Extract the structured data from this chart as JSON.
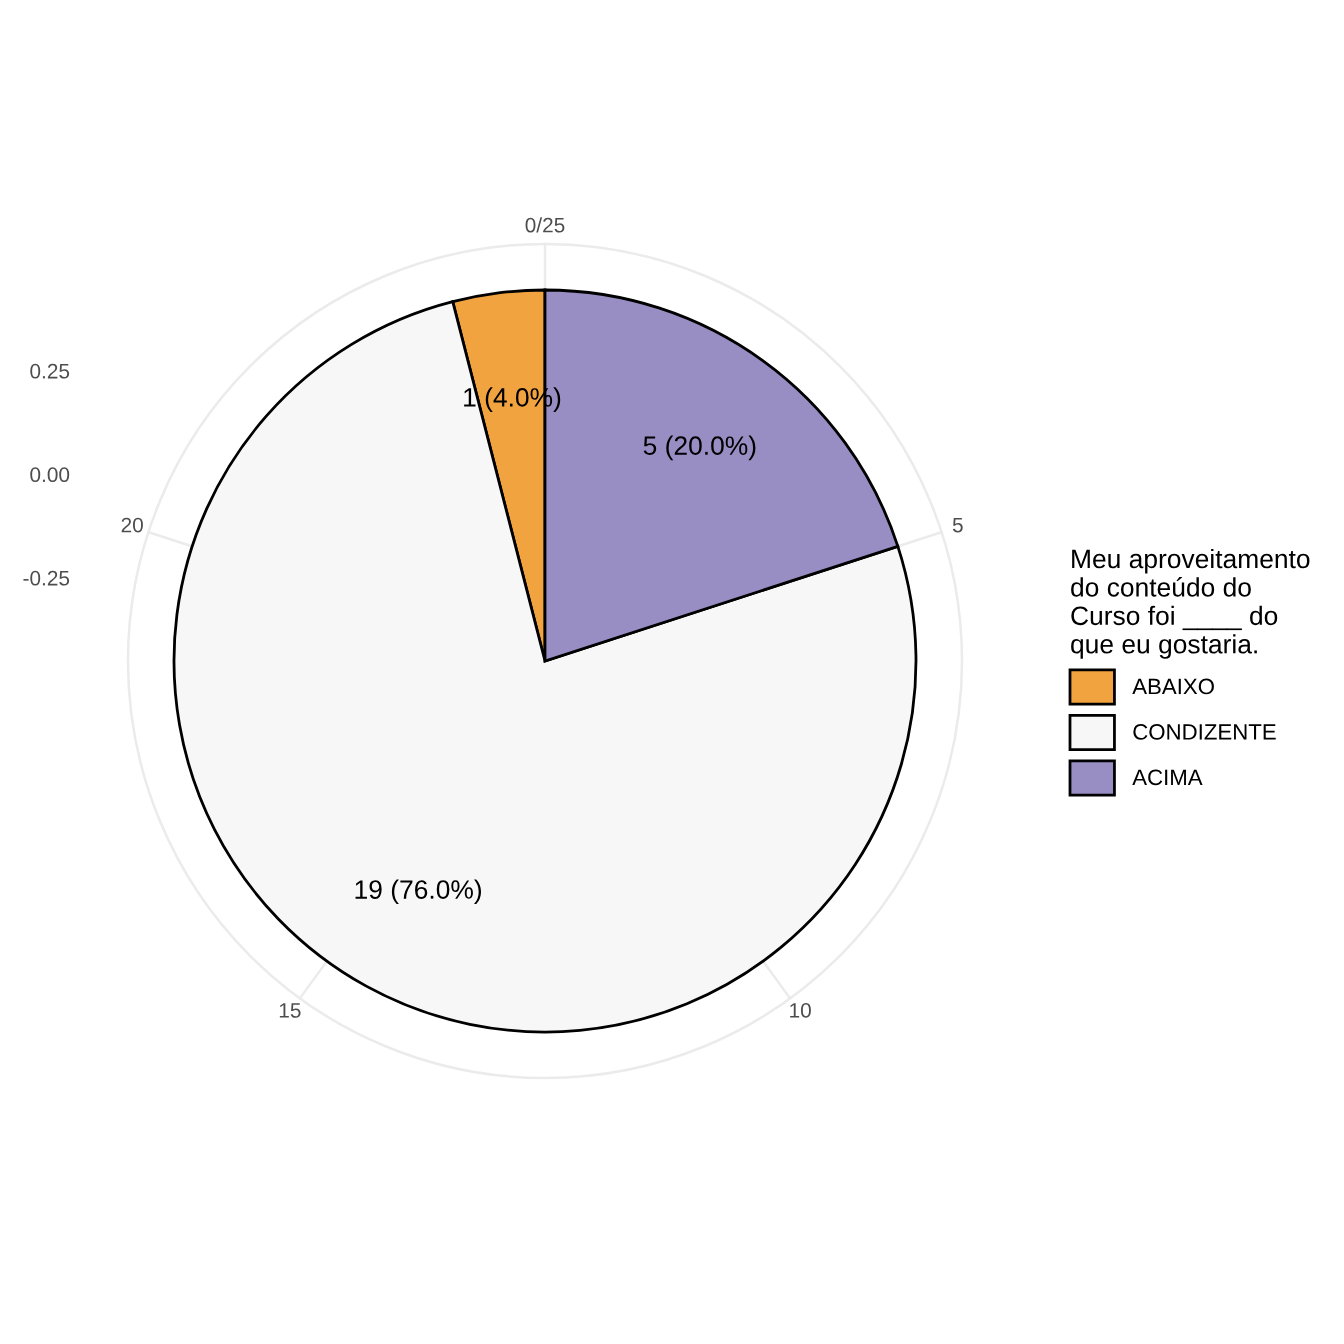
{
  "chart_data": {
    "type": "pie",
    "legend_title": "Meu aproveitamento\ndo conteúdo do\nCurso foi ____ do\nque eu gostaria.",
    "categories": [
      "ABAIXO",
      "CONDIZENTE",
      "ACIMA"
    ],
    "values": [
      1,
      19,
      5
    ],
    "colors": [
      "#f1a340",
      "#f7f7f7",
      "#998ec3"
    ],
    "value_labels": [
      "1 (4.0%)",
      "19 (76.0%)",
      "5 (20.0%)"
    ],
    "annotations": [
      "0/25",
      "5",
      "10",
      "15",
      "20",
      "0.25",
      "0.00",
      "-0.25"
    ],
    "grid": true,
    "legend": "right"
  }
}
